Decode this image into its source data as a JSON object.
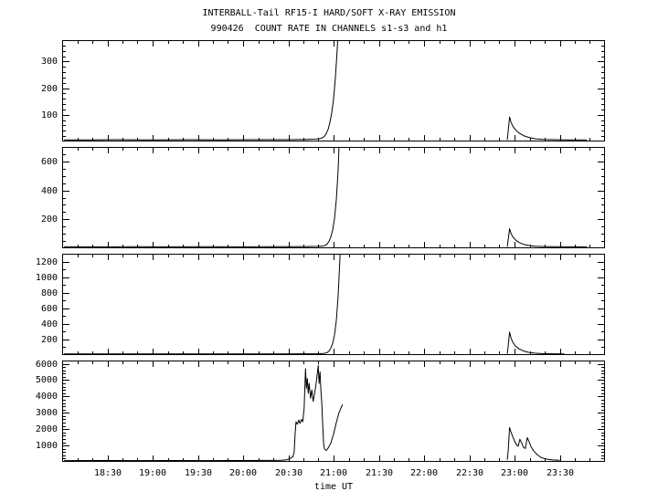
{
  "colors": {
    "line": "#000000",
    "background": "#ffffff"
  },
  "chart_data": {
    "type": "line",
    "title": "INTERBALL-Tail RF15-I HARD/SOFT X-RAY EMISSION",
    "subtitle": "990426  COUNT RATE IN CHANNELS s1-s3 and h1",
    "xlabel": "time UT",
    "xlim": [
      18.0,
      24.0
    ],
    "x_major_ticks": [
      18.5,
      19.0,
      19.5,
      20.0,
      20.5,
      21.0,
      21.5,
      22.0,
      22.5,
      23.0,
      23.5
    ],
    "x_major_labels": [
      "18:30",
      "19:00",
      "19:30",
      "20:00",
      "20:30",
      "21:00",
      "21:30",
      "22:00",
      "22:30",
      "23:00",
      "23:30"
    ],
    "legend": "off",
    "grid": "off",
    "panels": [
      {
        "name": "s1",
        "ylim": [
          0,
          380
        ],
        "y_major_ticks": [
          100,
          200,
          300
        ],
        "y_minor_step": 20,
        "segments": [
          [
            [
              18.02,
              6
            ],
            [
              18.3,
              6
            ],
            [
              18.6,
              7
            ],
            [
              19.0,
              6
            ],
            [
              19.4,
              7
            ],
            [
              19.8,
              6
            ],
            [
              20.2,
              7
            ],
            [
              20.5,
              7
            ],
            [
              20.7,
              8
            ],
            [
              20.8,
              9
            ],
            [
              20.85,
              11
            ],
            [
              20.88,
              14
            ],
            [
              20.9,
              20
            ],
            [
              20.92,
              30
            ],
            [
              20.94,
              46
            ],
            [
              20.96,
              72
            ],
            [
              20.98,
              108
            ],
            [
              21.0,
              160
            ],
            [
              21.02,
              240
            ],
            [
              21.04,
              345
            ],
            [
              21.055,
              440
            ]
          ],
          [
            [
              22.92,
              6
            ],
            [
              22.93,
              40
            ],
            [
              22.945,
              92
            ],
            [
              22.96,
              74
            ],
            [
              22.98,
              58
            ],
            [
              23.01,
              44
            ],
            [
              23.05,
              32
            ],
            [
              23.1,
              22
            ],
            [
              23.16,
              15
            ],
            [
              23.23,
              10
            ],
            [
              23.32,
              8
            ],
            [
              23.45,
              7
            ],
            [
              23.6,
              6
            ],
            [
              23.8,
              6
            ]
          ]
        ]
      },
      {
        "name": "s2",
        "ylim": [
          0,
          700
        ],
        "y_major_ticks": [
          200,
          400,
          600
        ],
        "y_minor_step": 50,
        "segments": [
          [
            [
              18.02,
              10
            ],
            [
              18.4,
              10
            ],
            [
              18.8,
              11
            ],
            [
              19.2,
              10
            ],
            [
              19.6,
              11
            ],
            [
              20.0,
              10
            ],
            [
              20.4,
              11
            ],
            [
              20.7,
              12
            ],
            [
              20.82,
              13
            ],
            [
              20.88,
              15
            ],
            [
              20.91,
              20
            ],
            [
              20.93,
              30
            ],
            [
              20.95,
              48
            ],
            [
              20.97,
              78
            ],
            [
              20.99,
              125
            ],
            [
              21.01,
              205
            ],
            [
              21.03,
              335
            ],
            [
              21.05,
              540
            ],
            [
              21.065,
              780
            ]
          ],
          [
            [
              22.92,
              10
            ],
            [
              22.93,
              60
            ],
            [
              22.945,
              135
            ],
            [
              22.96,
              105
            ],
            [
              22.98,
              80
            ],
            [
              23.01,
              58
            ],
            [
              23.05,
              40
            ],
            [
              23.1,
              27
            ],
            [
              23.16,
              19
            ],
            [
              23.23,
              14
            ],
            [
              23.32,
              12
            ],
            [
              23.45,
              11
            ],
            [
              23.62,
              10
            ],
            [
              23.8,
              10
            ]
          ]
        ]
      },
      {
        "name": "s3",
        "ylim": [
          0,
          1300
        ],
        "y_major_ticks": [
          200,
          400,
          600,
          800,
          1000,
          1200
        ],
        "y_minor_step": 100,
        "segments": [
          [
            [
              18.02,
              14
            ],
            [
              18.4,
              14
            ],
            [
              18.8,
              15
            ],
            [
              19.2,
              14
            ],
            [
              19.6,
              15
            ],
            [
              20.0,
              14
            ],
            [
              20.4,
              15
            ],
            [
              20.7,
              16
            ],
            [
              20.85,
              18
            ],
            [
              20.9,
              22
            ],
            [
              20.93,
              32
            ],
            [
              20.95,
              52
            ],
            [
              20.97,
              88
            ],
            [
              20.99,
              150
            ],
            [
              21.01,
              255
            ],
            [
              21.03,
              440
            ],
            [
              21.05,
              760
            ],
            [
              21.07,
              1220
            ],
            [
              21.08,
              1480
            ]
          ],
          [
            [
              22.92,
              15
            ],
            [
              22.93,
              120
            ],
            [
              22.945,
              295
            ],
            [
              22.96,
              225
            ],
            [
              22.98,
              165
            ],
            [
              23.01,
              115
            ],
            [
              23.05,
              78
            ],
            [
              23.1,
              52
            ],
            [
              23.16,
              34
            ],
            [
              23.22,
              25
            ],
            [
              23.3,
              19
            ],
            [
              23.4,
              16
            ],
            [
              23.55,
              15
            ]
          ]
        ]
      },
      {
        "name": "h1",
        "ylim": [
          0,
          6200
        ],
        "y_major_ticks": [
          1000,
          2000,
          3000,
          4000,
          5000,
          6000
        ],
        "y_minor_step": 200,
        "segments": [
          [
            [
              18.02,
              80
            ],
            [
              18.4,
              85
            ],
            [
              18.8,
              80
            ],
            [
              19.2,
              85
            ],
            [
              19.6,
              80
            ],
            [
              20.0,
              85
            ],
            [
              20.3,
              90
            ],
            [
              20.42,
              100
            ],
            [
              20.48,
              130
            ],
            [
              20.52,
              200
            ],
            [
              20.55,
              320
            ],
            [
              20.565,
              600
            ],
            [
              20.575,
              1700
            ],
            [
              20.585,
              2450
            ],
            [
              20.6,
              2300
            ],
            [
              20.615,
              2550
            ],
            [
              20.63,
              2350
            ],
            [
              20.645,
              2600
            ],
            [
              20.66,
              2450
            ],
            [
              20.675,
              3300
            ],
            [
              20.69,
              5700
            ],
            [
              20.7,
              4500
            ],
            [
              20.71,
              5100
            ],
            [
              20.72,
              4200
            ],
            [
              20.73,
              4800
            ],
            [
              20.745,
              3900
            ],
            [
              20.76,
              4400
            ],
            [
              20.775,
              3700
            ],
            [
              20.79,
              4200
            ],
            [
              20.805,
              4700
            ],
            [
              20.82,
              5400
            ],
            [
              20.83,
              5900
            ],
            [
              20.84,
              4800
            ],
            [
              20.85,
              5500
            ],
            [
              20.86,
              4400
            ],
            [
              20.87,
              3600
            ],
            [
              20.88,
              2300
            ],
            [
              20.89,
              1100
            ],
            [
              20.9,
              780
            ],
            [
              20.92,
              700
            ],
            [
              20.94,
              850
            ],
            [
              20.97,
              1150
            ],
            [
              21.0,
              1700
            ],
            [
              21.03,
              2400
            ],
            [
              21.06,
              3000
            ],
            [
              21.09,
              3400
            ],
            [
              21.1,
              3500
            ]
          ],
          [
            [
              22.92,
              130
            ],
            [
              22.93,
              700
            ],
            [
              22.945,
              2100
            ],
            [
              22.96,
              1850
            ],
            [
              22.98,
              1550
            ],
            [
              23.0,
              1280
            ],
            [
              23.02,
              1060
            ],
            [
              23.04,
              950
            ],
            [
              23.06,
              1380
            ],
            [
              23.08,
              1150
            ],
            [
              23.1,
              880
            ],
            [
              23.12,
              820
            ],
            [
              23.14,
              1480
            ],
            [
              23.16,
              1250
            ],
            [
              23.18,
              950
            ],
            [
              23.21,
              680
            ],
            [
              23.25,
              440
            ],
            [
              23.29,
              280
            ],
            [
              23.34,
              180
            ],
            [
              23.42,
              120
            ],
            [
              23.5,
              95
            ]
          ]
        ]
      }
    ]
  }
}
